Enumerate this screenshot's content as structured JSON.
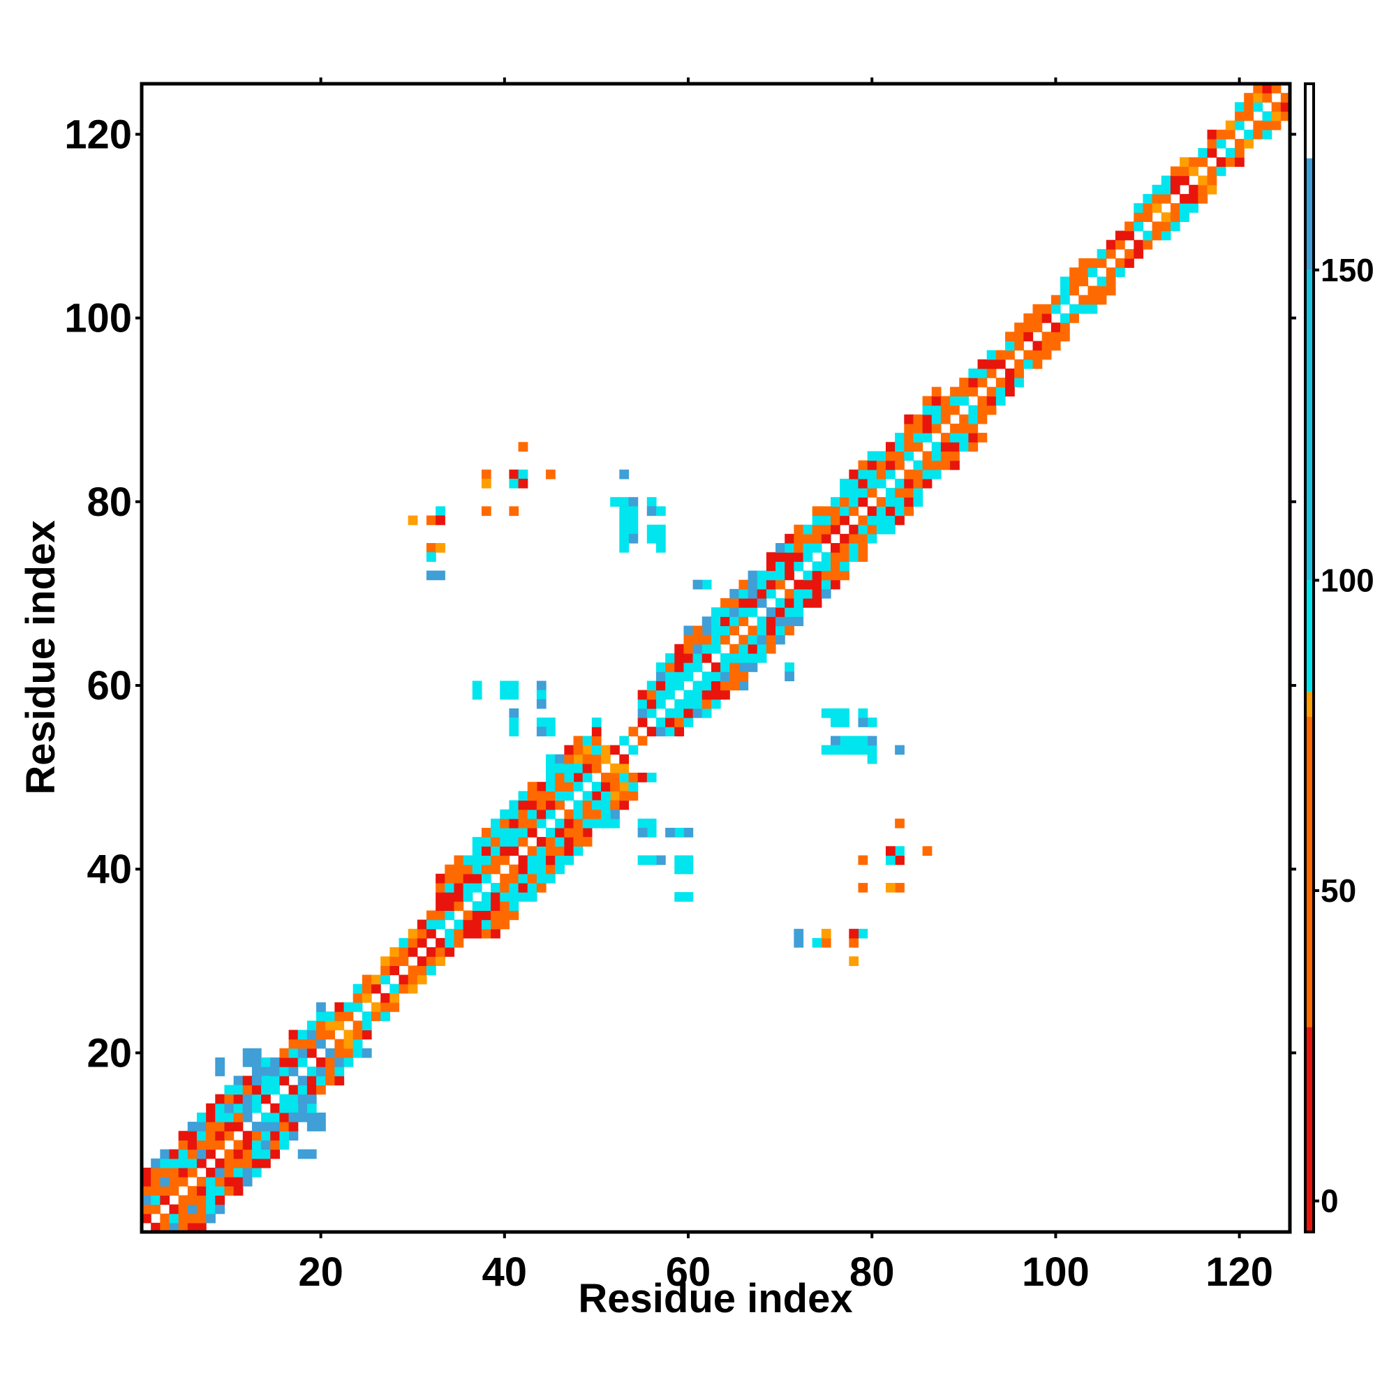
{
  "chart_data": {
    "type": "heatmap",
    "xlabel": "Residue index",
    "ylabel": "Residue index",
    "x_range": [
      1,
      125
    ],
    "y_range": [
      1,
      125
    ],
    "x_ticks": [
      20,
      40,
      60,
      80,
      100,
      120
    ],
    "y_ticks": [
      20,
      40,
      60,
      80,
      100,
      120
    ],
    "grid": false,
    "legend": "colorbar-right",
    "colorbar": {
      "range": [
        -5,
        180
      ],
      "ticks": [
        0,
        50,
        100,
        150
      ],
      "bands": [
        {
          "from": -5,
          "to": 28,
          "color": "#e8150c"
        },
        {
          "from": 28,
          "to": 78,
          "color": "#ff6a00"
        },
        {
          "from": 78,
          "to": 82,
          "color": "#ff9e00"
        },
        {
          "from": 82,
          "to": 100,
          "color": "#00e5ee"
        },
        {
          "from": 100,
          "to": 150,
          "color": "#1cc2e0"
        },
        {
          "from": 150,
          "to": 168,
          "color": "#3f9fd6"
        },
        {
          "from": 168,
          "to": 180,
          "color": "#ffffff"
        }
      ]
    },
    "diagonal_profile": [
      {
        "from": 1,
        "to": 10,
        "width": 6,
        "palette": [
          "cyan",
          "orange",
          "red",
          "orange",
          "lightblue"
        ]
      },
      {
        "from": 10,
        "to": 20,
        "width": 5,
        "palette": [
          "cyan",
          "orange",
          "red",
          "lightblue",
          "cyan"
        ]
      },
      {
        "from": 20,
        "to": 33,
        "width": 3,
        "palette": [
          "orange",
          "red",
          "orange",
          "amber",
          "cyan"
        ]
      },
      {
        "from": 33,
        "to": 50,
        "width": 6,
        "palette": [
          "cyan",
          "orange",
          "red",
          "cyan",
          "orange"
        ]
      },
      {
        "from": 50,
        "to": 55,
        "width": 2,
        "palette": [
          "amber",
          "orange",
          "red",
          "cyan"
        ]
      },
      {
        "from": 55,
        "to": 70,
        "width": 5,
        "palette": [
          "cyan",
          "orange",
          "red",
          "lightblue",
          "cyan"
        ]
      },
      {
        "from": 70,
        "to": 87,
        "width": 5,
        "palette": [
          "cyan",
          "orange",
          "red",
          "orange",
          "cyan"
        ]
      },
      {
        "from": 87,
        "to": 110,
        "width": 3,
        "palette": [
          "orange",
          "red",
          "orange",
          "orange",
          "cyan"
        ]
      },
      {
        "from": 110,
        "to": 125,
        "width": 3,
        "palette": [
          "cyan",
          "orange",
          "red",
          "orange",
          "amber"
        ]
      }
    ],
    "off_diagonal_contacts": [
      {
        "x": 33,
        "y": 79,
        "v": "cyan"
      },
      {
        "x": 30,
        "y": 78,
        "v": "amber"
      },
      {
        "x": 32,
        "y": 78,
        "v": "orange"
      },
      {
        "x": 33,
        "y": 78,
        "v": "red"
      },
      {
        "x": 32,
        "y": 75,
        "v": "orange"
      },
      {
        "x": 33,
        "y": 75,
        "v": "amber"
      },
      {
        "x": 32,
        "y": 74,
        "v": "cyan"
      },
      {
        "x": 32,
        "y": 72,
        "v": "lightblue"
      },
      {
        "x": 33,
        "y": 72,
        "v": "lightblue"
      },
      {
        "x": 42,
        "y": 86,
        "v": "orange"
      },
      {
        "x": 38,
        "y": 83,
        "v": "orange"
      },
      {
        "x": 41,
        "y": 83,
        "v": "red"
      },
      {
        "x": 42,
        "y": 83,
        "v": "cyan"
      },
      {
        "x": 45,
        "y": 83,
        "v": "orange"
      },
      {
        "x": 38,
        "y": 82,
        "v": "amber"
      },
      {
        "x": 41,
        "y": 82,
        "v": "cyan"
      },
      {
        "x": 42,
        "y": 82,
        "v": "red"
      },
      {
        "x": 38,
        "y": 79,
        "v": "orange"
      },
      {
        "x": 41,
        "y": 79,
        "v": "orange"
      },
      {
        "x": 53,
        "y": 83,
        "v": "lightblue"
      },
      {
        "x": 52,
        "y": 80,
        "v": "cyan"
      },
      {
        "x": 53,
        "y": 80,
        "v": "cyan"
      },
      {
        "x": 54,
        "y": 80,
        "v": "lightblue"
      },
      {
        "x": 56,
        "y": 80,
        "v": "cyan"
      },
      {
        "x": 54,
        "y": 79,
        "v": "cyan"
      },
      {
        "x": 56,
        "y": 79,
        "v": "lightblue"
      },
      {
        "x": 57,
        "y": 79,
        "v": "cyan"
      },
      {
        "x": 54,
        "y": 78,
        "v": "cyan"
      },
      {
        "x": 54,
        "y": 77,
        "v": "cyan"
      },
      {
        "x": 54,
        "y": 76,
        "v": "lightblue"
      },
      {
        "x": 56,
        "y": 76,
        "v": "cyan"
      },
      {
        "x": 57,
        "y": 76,
        "v": "cyan"
      },
      {
        "x": 53,
        "y": 76,
        "v": "cyan"
      },
      {
        "x": 57,
        "y": 75,
        "v": "cyan"
      },
      {
        "x": 62,
        "y": 71,
        "v": "cyan"
      },
      {
        "x": 37,
        "y": 60,
        "v": "cyan"
      },
      {
        "x": 40,
        "y": 60,
        "v": "cyan"
      },
      {
        "x": 41,
        "y": 60,
        "v": "cyan"
      },
      {
        "x": 44,
        "y": 60,
        "v": "lightblue"
      },
      {
        "x": 44,
        "y": 59,
        "v": "cyan"
      },
      {
        "x": 41,
        "y": 57,
        "v": "lightblue"
      },
      {
        "x": 41,
        "y": 56,
        "v": "cyan"
      },
      {
        "x": 44,
        "y": 56,
        "v": "cyan"
      },
      {
        "x": 45,
        "y": 56,
        "v": "cyan"
      },
      {
        "x": 71,
        "y": 61,
        "v": "lightblue"
      },
      {
        "x": 76,
        "y": 57,
        "v": "cyan"
      },
      {
        "x": 77,
        "y": 57,
        "v": "cyan"
      },
      {
        "x": 79,
        "y": 57,
        "v": "lightblue"
      },
      {
        "x": 77,
        "y": 56,
        "v": "cyan"
      },
      {
        "x": 80,
        "y": 56,
        "v": "cyan"
      },
      {
        "x": 76,
        "y": 54,
        "v": "cyan"
      },
      {
        "x": 80,
        "y": 54,
        "v": "lightblue"
      },
      {
        "x": 75,
        "y": 53,
        "v": "cyan"
      },
      {
        "x": 76,
        "y": 53,
        "v": "cyan"
      },
      {
        "x": 77,
        "y": 53,
        "v": "cyan"
      },
      {
        "x": 78,
        "y": 53,
        "v": "cyan"
      },
      {
        "x": 79,
        "y": 53,
        "v": "cyan"
      },
      {
        "x": 80,
        "y": 53,
        "v": "cyan"
      },
      {
        "x": 83,
        "y": 53,
        "v": "lightblue"
      },
      {
        "x": 80,
        "y": 52,
        "v": "cyan"
      },
      {
        "x": 55,
        "y": 45,
        "v": "cyan"
      },
      {
        "x": 55,
        "y": 44,
        "v": "lightblue"
      },
      {
        "x": 58,
        "y": 44,
        "v": "lightblue"
      },
      {
        "x": 59,
        "y": 44,
        "v": "cyan"
      },
      {
        "x": 55,
        "y": 41,
        "v": "cyan"
      },
      {
        "x": 56,
        "y": 41,
        "v": "lightblue"
      },
      {
        "x": 59,
        "y": 41,
        "v": "cyan"
      },
      {
        "x": 59,
        "y": 40,
        "v": "cyan"
      },
      {
        "x": 59,
        "y": 37,
        "v": "cyan"
      },
      {
        "x": 83,
        "y": 45,
        "v": "orange"
      },
      {
        "x": 82,
        "y": 42,
        "v": "red"
      },
      {
        "x": 83,
        "y": 42,
        "v": "cyan"
      },
      {
        "x": 86,
        "y": 42,
        "v": "orange"
      },
      {
        "x": 79,
        "y": 41,
        "v": "amber"
      },
      {
        "x": 82,
        "y": 41,
        "v": "cyan"
      },
      {
        "x": 83,
        "y": 41,
        "v": "red"
      },
      {
        "x": 79,
        "y": 38,
        "v": "amber"
      },
      {
        "x": 82,
        "y": 38,
        "v": "amber"
      },
      {
        "x": 83,
        "y": 38,
        "v": "amber"
      },
      {
        "x": 72,
        "y": 33,
        "v": "lightblue"
      },
      {
        "x": 72,
        "y": 32,
        "v": "lightblue"
      },
      {
        "x": 74,
        "y": 32,
        "v": "cyan"
      },
      {
        "x": 75,
        "y": 33,
        "v": "amber"
      },
      {
        "x": 75,
        "y": 32,
        "v": "cyan"
      },
      {
        "x": 78,
        "y": 33,
        "v": "red"
      },
      {
        "x": 79,
        "y": 33,
        "v": "cyan"
      },
      {
        "x": 78,
        "y": 32,
        "v": "amber"
      },
      {
        "x": 78,
        "y": 30,
        "v": "amber"
      },
      {
        "x": 9,
        "y": 19,
        "v": "lightblue"
      },
      {
        "x": 12,
        "y": 20,
        "v": "lightblue"
      },
      {
        "x": 13,
        "y": 20,
        "v": "lightblue"
      },
      {
        "x": 13,
        "y": 19,
        "v": "lightblue"
      },
      {
        "x": 14,
        "y": 18,
        "v": "lightblue"
      },
      {
        "x": 11,
        "y": 17,
        "v": "lightblue"
      },
      {
        "x": 16,
        "y": 15,
        "v": "cyan"
      },
      {
        "x": 17,
        "y": 14,
        "v": "cyan"
      },
      {
        "x": 18,
        "y": 13,
        "v": "lightblue"
      },
      {
        "x": 19,
        "y": 13,
        "v": "lightblue"
      },
      {
        "x": 19,
        "y": 12,
        "v": "lightblue"
      },
      {
        "x": 17,
        "y": 11,
        "v": "lightblue"
      },
      {
        "x": 18,
        "y": 9,
        "v": "lightblue"
      },
      {
        "x": 19,
        "y": 9,
        "v": "lightblue"
      },
      {
        "x": 50,
        "y": 45,
        "v": "cyan"
      },
      {
        "x": 51,
        "y": 45,
        "v": "cyan"
      },
      {
        "x": 52,
        "y": 45,
        "v": "cyan"
      },
      {
        "x": 45,
        "y": 51,
        "v": "cyan"
      },
      {
        "x": 46,
        "y": 52,
        "v": "lightblue"
      },
      {
        "x": 53,
        "y": 49,
        "v": "amber"
      },
      {
        "x": 52,
        "y": 48,
        "v": "amber"
      },
      {
        "x": 48,
        "y": 50,
        "v": "red"
      },
      {
        "x": 44,
        "y": 49,
        "v": "red"
      },
      {
        "x": 60,
        "y": 66,
        "v": "lightblue"
      },
      {
        "x": 66,
        "y": 62,
        "v": "lightblue"
      },
      {
        "x": 67,
        "y": 62,
        "v": "lightblue"
      }
    ]
  }
}
